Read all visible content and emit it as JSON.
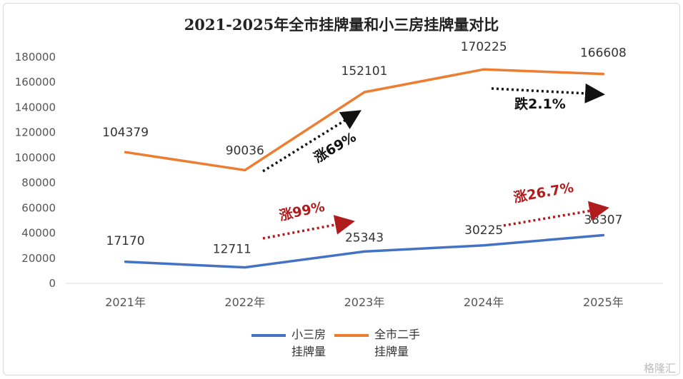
{
  "chart_data": {
    "type": "line",
    "title": "2021-2025年全市挂牌量和小三房挂牌量对比",
    "categories": [
      "2021年",
      "2022年",
      "2023年",
      "2024年",
      "2025年"
    ],
    "ylim": [
      0,
      180000
    ],
    "yticks": [
      0,
      20000,
      40000,
      60000,
      80000,
      100000,
      120000,
      140000,
      160000,
      180000
    ],
    "grid": false,
    "legend_position": "bottom",
    "series": [
      {
        "name": "小三房挂牌量",
        "legend_lines": [
          "小三房",
          "挂牌量"
        ],
        "color": "#4472C4",
        "values": [
          17170,
          12711,
          25343,
          30225,
          38307
        ]
      },
      {
        "name": "全市二手挂牌量",
        "legend_lines": [
          "全市二手",
          "挂牌量"
        ],
        "color": "#ED7D31",
        "values": [
          104379,
          90036,
          152101,
          170225,
          166608
        ]
      }
    ],
    "annotations": [
      {
        "text": "涨69%",
        "color": "#111111",
        "from": [
          1,
          90036
        ],
        "to": [
          2,
          152101
        ]
      },
      {
        "text": "跌2.1%",
        "color": "#111111",
        "from": [
          3,
          170225
        ],
        "to": [
          4,
          166608
        ]
      },
      {
        "text": "涨99%",
        "color": "#b01c1c",
        "from": [
          1,
          12711
        ],
        "to": [
          2,
          25343
        ]
      },
      {
        "text": "涨26.7%",
        "color": "#b01c1c",
        "from": [
          3,
          30225
        ],
        "to": [
          4,
          38307
        ]
      }
    ]
  },
  "watermark": "格隆汇"
}
